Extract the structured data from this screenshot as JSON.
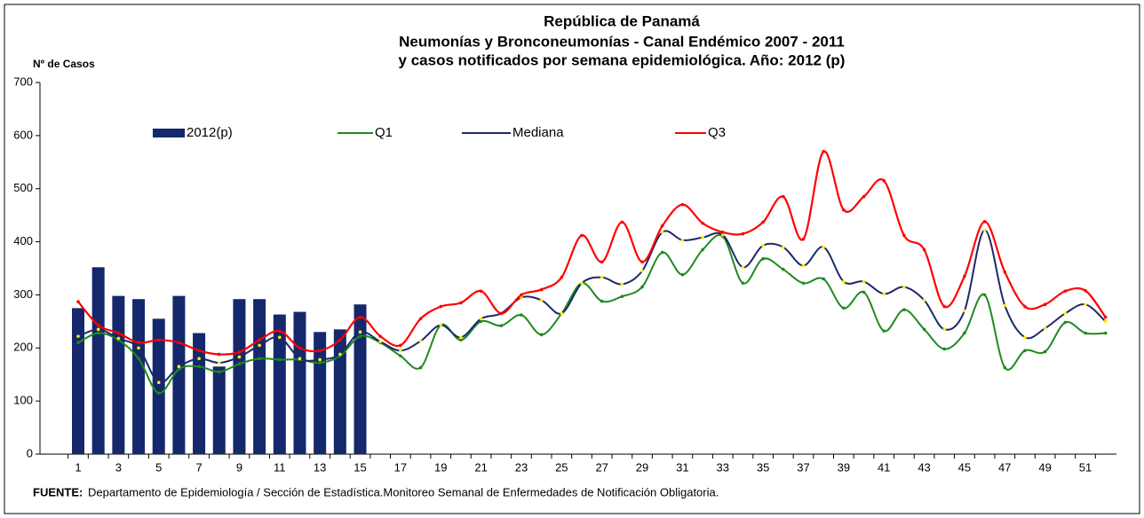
{
  "chart_data": {
    "type": "bar_line",
    "title_lines": [
      "República de Panamá",
      "Neumonías y Bronconeumonías - Canal Endémico 2007  -  2011",
      "y casos notificados por semana epidemiológica. Año: 2012 (p)"
    ],
    "y_label": "Nº de Casos",
    "source_label": "FUENTE:",
    "source": "Departamento de Epidemiología / Sección de Estadística.Monitoreo  Semanal de Enfermedades de Notificación Obligatoria.",
    "categories": [
      "1",
      null,
      "3",
      null,
      "5",
      null,
      "7",
      null,
      "9",
      null,
      "11",
      null,
      "13",
      null,
      "15",
      null,
      "17",
      null,
      "19",
      null,
      "21",
      null,
      "23",
      null,
      "25",
      null,
      "27",
      null,
      "29",
      null,
      "31",
      null,
      "33",
      null,
      "35",
      null,
      "37",
      null,
      "39",
      null,
      "41",
      null,
      "43",
      null,
      "45",
      null,
      "47",
      null,
      "49",
      null,
      "51",
      null
    ],
    "ylim": [
      0,
      700
    ],
    "yticks": [
      0,
      100,
      200,
      300,
      400,
      500,
      600,
      700
    ],
    "series": [
      {
        "name": "2012(p)",
        "type": "bar",
        "color": "#14286b",
        "values": [
          275,
          352,
          298,
          292,
          255,
          298,
          228,
          165,
          292,
          292,
          263,
          268,
          230,
          235,
          282,
          null,
          null,
          null,
          null,
          null,
          null,
          null,
          null,
          null,
          null,
          null,
          null,
          null,
          null,
          null,
          null,
          null,
          null,
          null,
          null,
          null,
          null,
          null,
          null,
          null,
          null,
          null,
          null,
          null,
          null,
          null,
          null,
          null,
          null,
          null,
          null,
          null
        ]
      },
      {
        "name": "Q1",
        "type": "line",
        "color": "#1f8a1f",
        "values": [
          210,
          228,
          215,
          180,
          115,
          160,
          165,
          155,
          170,
          180,
          178,
          178,
          172,
          185,
          222,
          210,
          185,
          163,
          243,
          215,
          250,
          242,
          262,
          225,
          265,
          322,
          288,
          297,
          315,
          380,
          338,
          385,
          410,
          322,
          368,
          348,
          322,
          330,
          275,
          305,
          232,
          272,
          235,
          198,
          228,
          300,
          163,
          195,
          193,
          248,
          228,
          228
        ]
      },
      {
        "name": "Mediana",
        "type": "line",
        "color": "#1a2a6c",
        "values": [
          222,
          235,
          218,
          200,
          135,
          165,
          180,
          172,
          183,
          205,
          220,
          180,
          178,
          188,
          230,
          212,
          195,
          213,
          243,
          220,
          255,
          265,
          295,
          290,
          265,
          322,
          333,
          320,
          345,
          418,
          403,
          408,
          413,
          352,
          393,
          390,
          355,
          390,
          325,
          325,
          302,
          315,
          290,
          235,
          270,
          422,
          280,
          220,
          237,
          265,
          282,
          250
        ]
      },
      {
        "name": "Q3",
        "type": "line",
        "color": "#ff0000",
        "values": [
          287,
          243,
          228,
          210,
          215,
          210,
          195,
          188,
          192,
          215,
          232,
          200,
          195,
          215,
          258,
          222,
          205,
          255,
          278,
          285,
          307,
          265,
          300,
          310,
          333,
          412,
          362,
          437,
          362,
          430,
          470,
          435,
          418,
          415,
          437,
          485,
          405,
          570,
          460,
          485,
          515,
          412,
          385,
          278,
          335,
          438,
          343,
          278,
          282,
          307,
          308,
          258
        ]
      }
    ]
  }
}
